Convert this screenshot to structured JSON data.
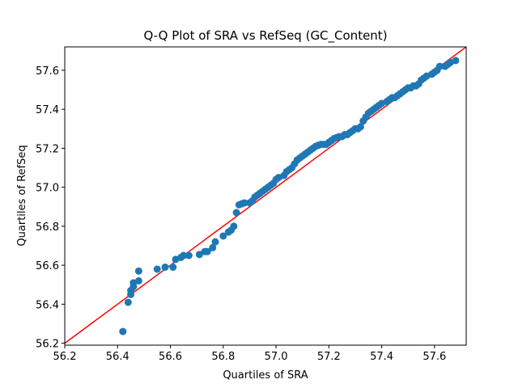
{
  "chart_data": {
    "type": "scatter",
    "title": "Q-Q Plot of SRA vs RefSeq (GC_Content)",
    "xlabel": "Quartiles of SRA",
    "ylabel": "Quartiles of RefSeq",
    "xlim": [
      56.2,
      57.72
    ],
    "ylim": [
      56.19,
      57.72
    ],
    "xticks": [
      "56.2",
      "56.4",
      "56.6",
      "56.8",
      "57.0",
      "57.2",
      "57.4",
      "57.6"
    ],
    "yticks": [
      "56.2",
      "56.4",
      "56.6",
      "56.8",
      "57.0",
      "57.2",
      "57.4",
      "57.6"
    ],
    "grid": false,
    "legend": "none",
    "colors": {
      "points": "#1f77b4",
      "reference_line": "#ff0000"
    },
    "reference_line": {
      "x": [
        56.2,
        57.72
      ],
      "y": [
        56.2,
        57.72
      ]
    },
    "series": [
      {
        "values": [
          [
            56.42,
            56.26
          ],
          [
            56.44,
            56.41
          ],
          [
            56.45,
            56.45
          ],
          [
            56.45,
            56.47
          ],
          [
            56.46,
            56.49
          ],
          [
            56.46,
            56.51
          ],
          [
            56.48,
            56.52
          ],
          [
            56.48,
            56.57
          ],
          [
            56.55,
            56.58
          ],
          [
            56.58,
            56.59
          ],
          [
            56.61,
            56.59
          ],
          [
            56.62,
            56.63
          ],
          [
            56.64,
            56.64
          ],
          [
            56.65,
            56.65
          ],
          [
            56.67,
            56.65
          ],
          [
            56.71,
            56.655
          ],
          [
            56.73,
            56.67
          ],
          [
            56.74,
            56.67
          ],
          [
            56.76,
            56.69
          ],
          [
            56.77,
            56.72
          ],
          [
            56.8,
            56.75
          ],
          [
            56.82,
            56.77
          ],
          [
            56.83,
            56.78
          ],
          [
            56.84,
            56.8
          ],
          [
            56.85,
            56.87
          ],
          [
            56.86,
            56.91
          ],
          [
            56.87,
            56.915
          ],
          [
            56.88,
            56.92
          ],
          [
            56.9,
            56.92
          ],
          [
            56.91,
            56.93
          ],
          [
            56.92,
            56.95
          ],
          [
            56.93,
            56.96
          ],
          [
            56.94,
            56.97
          ],
          [
            56.95,
            56.98
          ],
          [
            56.96,
            56.99
          ],
          [
            56.97,
            57.0
          ],
          [
            56.98,
            57.01
          ],
          [
            56.99,
            57.02
          ],
          [
            57.0,
            57.04
          ],
          [
            57.01,
            57.05
          ],
          [
            57.03,
            57.06
          ],
          [
            57.04,
            57.08
          ],
          [
            57.05,
            57.09
          ],
          [
            57.06,
            57.1
          ],
          [
            57.07,
            57.12
          ],
          [
            57.08,
            57.14
          ],
          [
            57.09,
            57.15
          ],
          [
            57.1,
            57.16
          ],
          [
            57.11,
            57.17
          ],
          [
            57.12,
            57.18
          ],
          [
            57.13,
            57.19
          ],
          [
            57.14,
            57.2
          ],
          [
            57.15,
            57.21
          ],
          [
            57.16,
            57.215
          ],
          [
            57.17,
            57.22
          ],
          [
            57.18,
            57.22
          ],
          [
            57.19,
            57.22
          ],
          [
            57.2,
            57.23
          ],
          [
            57.21,
            57.24
          ],
          [
            57.22,
            57.25
          ],
          [
            57.23,
            57.255
          ],
          [
            57.24,
            57.26
          ],
          [
            57.25,
            57.26
          ],
          [
            57.26,
            57.27
          ],
          [
            57.27,
            57.27
          ],
          [
            57.28,
            57.28
          ],
          [
            57.29,
            57.29
          ],
          [
            57.3,
            57.3
          ],
          [
            57.31,
            57.3
          ],
          [
            57.32,
            57.31
          ],
          [
            57.33,
            57.34
          ],
          [
            57.34,
            57.36
          ],
          [
            57.35,
            57.38
          ],
          [
            57.36,
            57.39
          ],
          [
            57.37,
            57.4
          ],
          [
            57.38,
            57.41
          ],
          [
            57.39,
            57.42
          ],
          [
            57.4,
            57.43
          ],
          [
            57.42,
            57.44
          ],
          [
            57.43,
            57.45
          ],
          [
            57.44,
            57.46
          ],
          [
            57.45,
            57.46
          ],
          [
            57.46,
            57.47
          ],
          [
            57.47,
            57.48
          ],
          [
            57.48,
            57.49
          ],
          [
            57.49,
            57.5
          ],
          [
            57.5,
            57.51
          ],
          [
            57.51,
            57.51
          ],
          [
            57.52,
            57.52
          ],
          [
            57.53,
            57.52
          ],
          [
            57.54,
            57.53
          ],
          [
            57.55,
            57.55
          ],
          [
            57.56,
            57.56
          ],
          [
            57.57,
            57.57
          ],
          [
            57.59,
            57.58
          ],
          [
            57.6,
            57.59
          ],
          [
            57.61,
            57.6
          ],
          [
            57.62,
            57.62
          ],
          [
            57.64,
            57.62
          ],
          [
            57.65,
            57.63
          ],
          [
            57.66,
            57.64
          ],
          [
            57.68,
            57.65
          ]
        ]
      }
    ]
  }
}
